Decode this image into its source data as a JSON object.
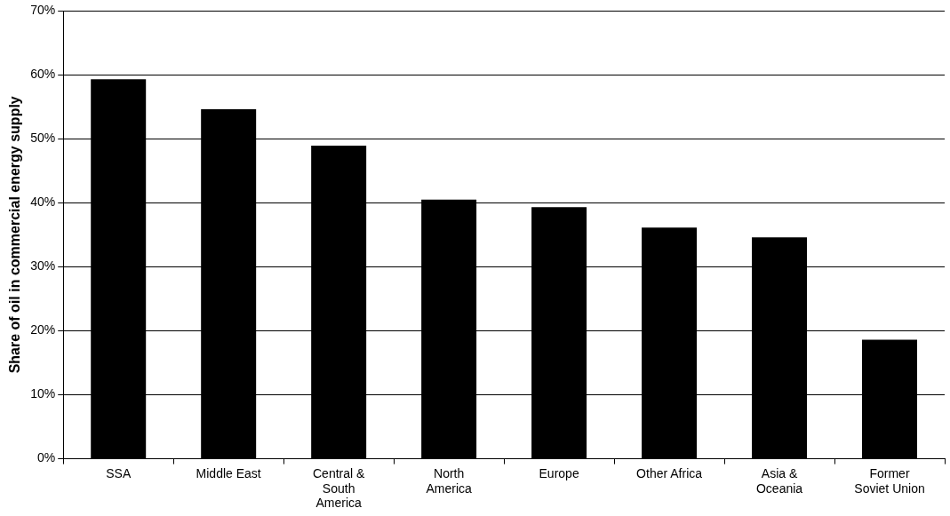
{
  "chart_data": {
    "type": "bar",
    "ylabel": "Share of oil in commercial energy supply",
    "categories": [
      "SSA",
      "Middle East",
      "Central & South America",
      "North America",
      "Europe",
      "Other Africa",
      "Asia & Oceania",
      "Former Soviet Union"
    ],
    "values": [
      59.3,
      54.6,
      48.9,
      40.5,
      39.3,
      36.1,
      34.6,
      18.6
    ],
    "color": "#000000",
    "ylim": [
      0,
      70
    ],
    "yticks": [
      {
        "value": 0,
        "label": "0%"
      },
      {
        "value": 10,
        "label": "10%"
      },
      {
        "value": 20,
        "label": "20%"
      },
      {
        "value": 30,
        "label": "30%"
      },
      {
        "value": 40,
        "label": "40%"
      },
      {
        "value": 50,
        "label": "50%"
      },
      {
        "value": 60,
        "label": "60%"
      },
      {
        "value": 70,
        "label": "70%"
      }
    ],
    "grid": "y",
    "legend": false
  }
}
